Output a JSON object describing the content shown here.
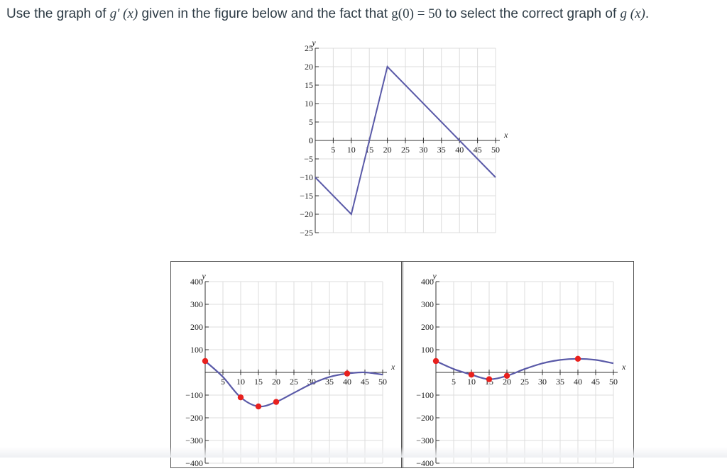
{
  "question": {
    "part1": "Use the graph of ",
    "g_prime": "g′",
    "x1": " (x)",
    "part2": " given in the figure below and the fact that ",
    "g0": "g(0)",
    "eq": " = 50",
    "part3": " to select the correct graph of ",
    "g": "g",
    "x2": " (x)",
    "end": "."
  },
  "chart_data": [
    {
      "type": "line",
      "xlabel": "x",
      "ylabel": "y",
      "xlim": [
        0,
        50
      ],
      "ylim": [
        -25,
        25
      ],
      "x_ticks": [
        5,
        10,
        15,
        20,
        25,
        30,
        35,
        40,
        45,
        50
      ],
      "y_ticks": [
        -25,
        -20,
        -15,
        -10,
        -5,
        0,
        5,
        10,
        15,
        20,
        25
      ],
      "grid": true,
      "series": [
        {
          "points": [
            [
              0,
              -10
            ],
            [
              10,
              -20
            ],
            [
              20,
              20
            ],
            [
              50,
              -10
            ]
          ],
          "color": "#5a5aa8"
        }
      ]
    },
    {
      "type": "line",
      "xlabel": "x",
      "ylabel": "y",
      "xlim": [
        0,
        50
      ],
      "ylim": [
        -400,
        400
      ],
      "x_ticks": [
        5,
        10,
        15,
        20,
        25,
        30,
        35,
        40,
        45,
        50
      ],
      "y_ticks": [
        -400,
        -300,
        -200,
        -100,
        100,
        200,
        300,
        400
      ],
      "grid": true,
      "series": [
        {
          "points": [
            [
              0,
              50
            ],
            [
              5,
              -20
            ],
            [
              10,
              -110
            ],
            [
              15,
              -150
            ],
            [
              20,
              -130
            ],
            [
              25,
              -90
            ],
            [
              30,
              -50
            ],
            [
              35,
              -20
            ],
            [
              40,
              -5
            ],
            [
              45,
              0
            ],
            [
              50,
              -10
            ]
          ],
          "markers": [
            [
              0,
              50
            ],
            [
              10,
              -110
            ],
            [
              15,
              -150
            ],
            [
              20,
              -130
            ],
            [
              40,
              -5
            ]
          ],
          "color": "#5a5aa8",
          "marker_color": "#e8211e"
        }
      ]
    },
    {
      "type": "line",
      "xlabel": "x",
      "ylabel": "y",
      "xlim": [
        0,
        50
      ],
      "ylim": [
        -400,
        400
      ],
      "x_ticks": [
        5,
        10,
        15,
        20,
        25,
        30,
        35,
        40,
        45,
        50
      ],
      "y_ticks": [
        -400,
        -300,
        -200,
        -100,
        100,
        200,
        300,
        400
      ],
      "grid": true,
      "series": [
        {
          "points": [
            [
              0,
              50
            ],
            [
              5,
              15
            ],
            [
              10,
              -10
            ],
            [
              15,
              -30
            ],
            [
              20,
              -15
            ],
            [
              25,
              15
            ],
            [
              30,
              40
            ],
            [
              35,
              55
            ],
            [
              40,
              60
            ],
            [
              45,
              55
            ],
            [
              50,
              40
            ]
          ],
          "markers": [
            [
              0,
              50
            ],
            [
              10,
              -10
            ],
            [
              15,
              -30
            ],
            [
              20,
              -15
            ],
            [
              40,
              60
            ]
          ],
          "color": "#5a5aa8",
          "marker_color": "#e8211e"
        }
      ]
    }
  ]
}
